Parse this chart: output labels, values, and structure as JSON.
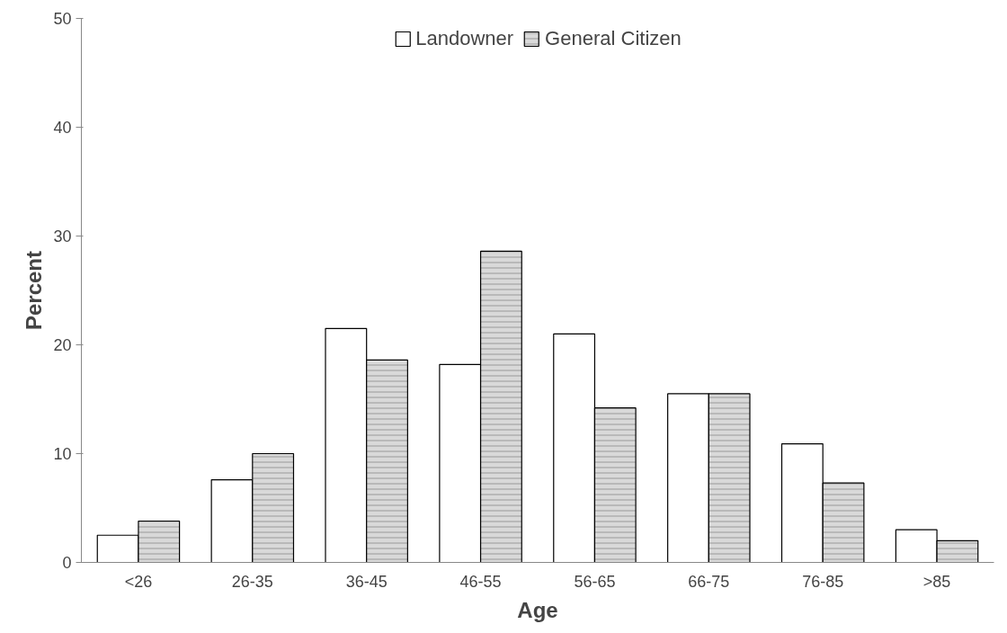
{
  "chart_data": {
    "type": "bar",
    "xlabel": "Age",
    "ylabel": "Percent",
    "categories": [
      "<26",
      "26-35",
      "36-45",
      "46-55",
      "56-65",
      "66-75",
      "76-85",
      ">85"
    ],
    "series": [
      {
        "name": "Landowner",
        "color": "#ffffff",
        "values": [
          2.5,
          7.6,
          21.5,
          18.2,
          21.0,
          15.5,
          10.9,
          3.0
        ]
      },
      {
        "name": "General Citizen",
        "color": "#d9d9d9",
        "values": [
          3.8,
          10.0,
          18.6,
          28.6,
          14.2,
          15.5,
          7.3,
          2.0
        ]
      }
    ],
    "ylim": [
      0,
      50
    ],
    "yticks": [
      0,
      10,
      20,
      30,
      40,
      50
    ],
    "grid": false,
    "legend": "top"
  }
}
